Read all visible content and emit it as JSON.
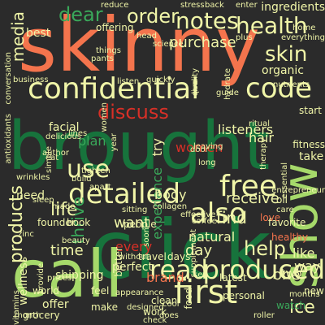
{
  "palette": {
    "background": "#2b2b2b",
    "dark_green": "#17733c",
    "mid_green": "#3aa85a",
    "light_green": "#a6d96a",
    "pale_yellow": "#f0f5a8",
    "pale_green": "#d4eeb0",
    "orange": "#f4744d",
    "red": "#d73027",
    "dark_red": "#a50026"
  },
  "words": [
    "skinny",
    "brought",
    "click",
    "call",
    "confidential",
    "code",
    "show",
    "read",
    "produced",
    "first",
    "detailed",
    "free",
    "also",
    "notes",
    "order",
    "dear",
    "health",
    "discuss",
    "use",
    "media",
    "products",
    "skin",
    "ingredients",
    "purchase",
    "receive",
    "find",
    "help",
    "life",
    "thrive",
    "want",
    "time",
    "shipping",
    "wellness",
    "experience",
    "day",
    "brand",
    "natural",
    "one",
    "like",
    "way",
    "organic",
    "best",
    "listeners",
    "plan",
    "hair",
    "body",
    "every",
    "need",
    "offer",
    "world",
    "grocery",
    "ice",
    "new",
    "watch",
    "months",
    "two",
    "clean",
    "feel",
    "make",
    "work",
    "latest",
    "personal",
    "people",
    "without",
    "perfect",
    "better",
    "travel",
    "days",
    "food",
    "love",
    "healthy",
    "favorite",
    "prices",
    "founder",
    "book",
    "made",
    "women",
    "try",
    "facial",
    "women",
    "quality",
    "offering",
    "pants",
    "things",
    "business",
    "delicious",
    "guide",
    "hydrate",
    "nutrients",
    "everything",
    "start",
    "oil",
    "take",
    "fitness",
    "care",
    "entrepreneur",
    "supplement",
    "coffee",
    "effective",
    "build",
    "sleep",
    "tighten",
    "apart",
    "sitting",
    "soon",
    "appearance",
    "month",
    "provide",
    "sex",
    "zinc",
    "collagen",
    "beauty",
    "reduce",
    "stress",
    "back",
    "enter",
    "plus",
    "head",
    "science",
    "home",
    "live",
    "quickly",
    "listen",
    "ritual",
    "leaving",
    "long",
    "door",
    "therapy",
    "essential",
    "wrinkles",
    "lines",
    "simple",
    "year",
    "eat",
    "antioxidants",
    "conversation",
    "vitamins",
    "author",
    "check",
    "cool",
    "designed",
    "does",
    "roller"
  ],
  "layout_note": ""
}
